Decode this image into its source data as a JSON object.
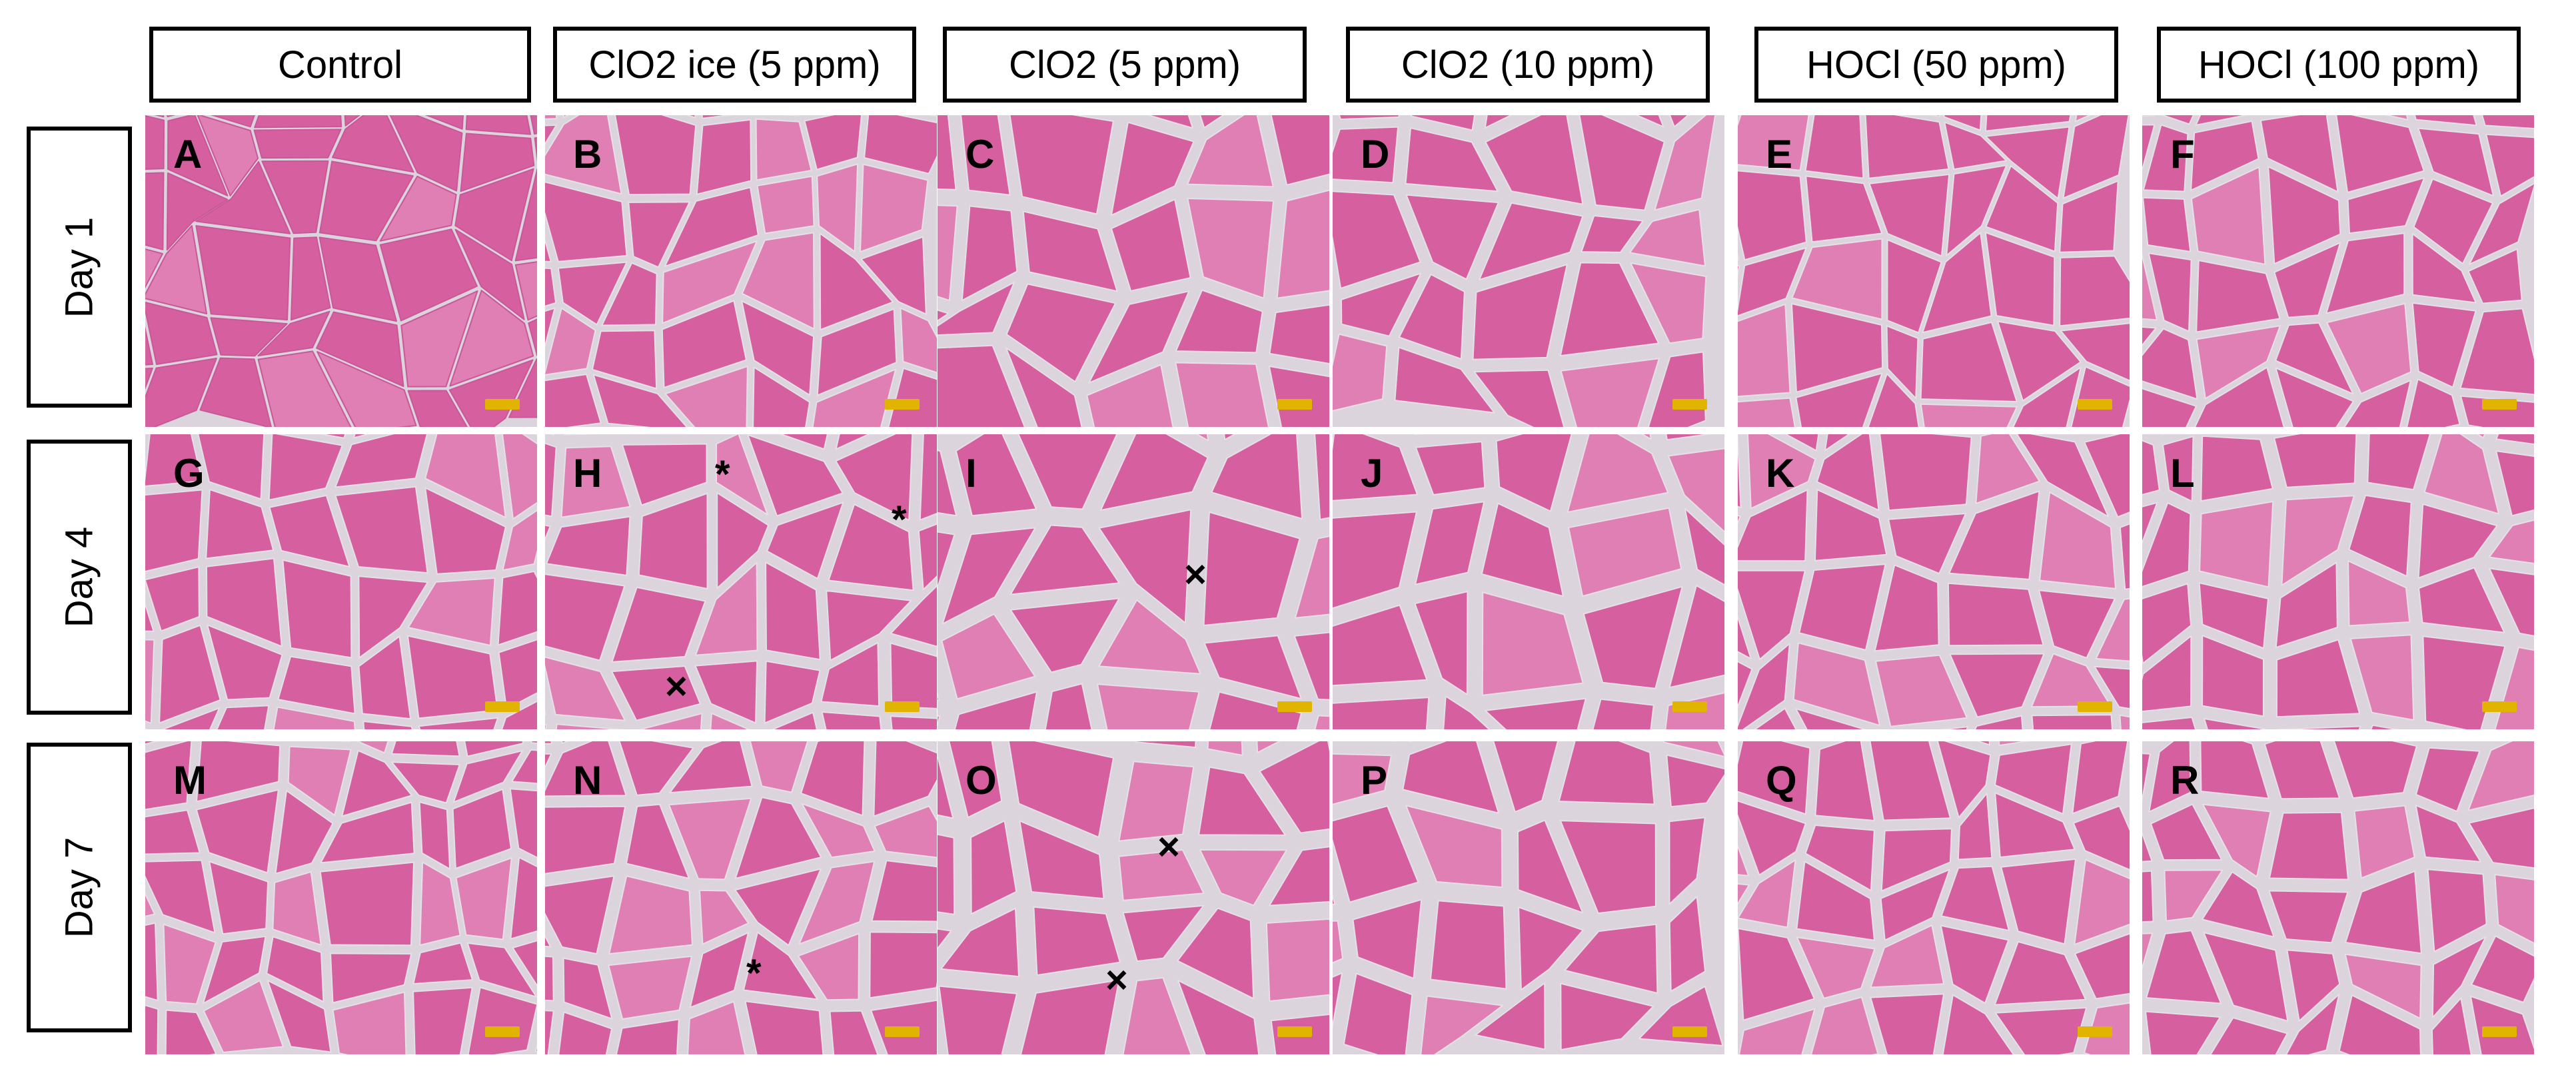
{
  "columns": [
    "Control",
    "ClO2 ice (5 ppm)",
    "ClO2 (5 ppm)",
    "ClO2 (10 ppm)",
    "HOCl (50 ppm)",
    "HOCl (100 ppm)"
  ],
  "rows": [
    "Day 1",
    "Day 4",
    "Day 7"
  ],
  "panels": [
    [
      "A",
      "B",
      "C",
      "D",
      "E",
      "F"
    ],
    [
      "G",
      "H",
      "I",
      "J",
      "K",
      "L"
    ],
    [
      "M",
      "N",
      "O",
      "P",
      "Q",
      "R"
    ]
  ],
  "colors": {
    "tissue": "#d65f9f",
    "tissue_light": "#e07fb4",
    "gap": "#dcd4dc",
    "scalebar": "#e0b400"
  },
  "annotations": {
    "asterisk": "*",
    "cross": "×"
  }
}
